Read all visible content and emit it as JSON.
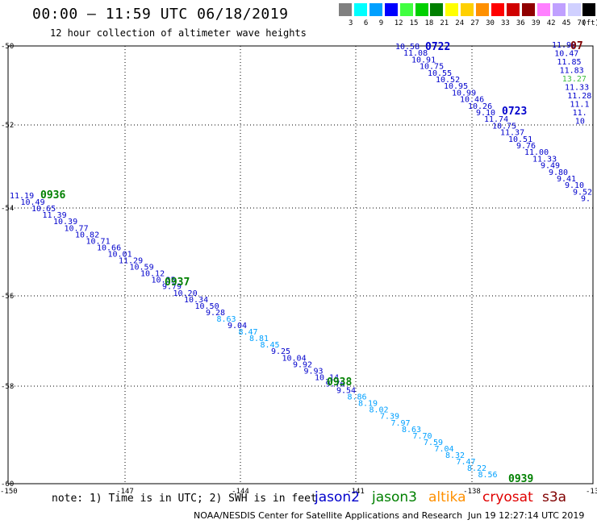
{
  "title": "00:00 – 11:59 UTC 06/18/2019",
  "subtitle": "12 hour collection of altimeter wave heights",
  "legend": {
    "unit": "(ft)",
    "bins": [
      {
        "label": "3",
        "color": "#808080"
      },
      {
        "label": "6",
        "color": "#00ffff"
      },
      {
        "label": "9",
        "color": "#00a0ff"
      },
      {
        "label": "12",
        "color": "#0000ff"
      },
      {
        "label": "15",
        "color": "#40ff40"
      },
      {
        "label": "18",
        "color": "#00d000"
      },
      {
        "label": "21",
        "color": "#008000"
      },
      {
        "label": "24",
        "color": "#ffff00"
      },
      {
        "label": "27",
        "color": "#ffd000"
      },
      {
        "label": "30",
        "color": "#ff9000"
      },
      {
        "label": "33",
        "color": "#ff0000"
      },
      {
        "label": "36",
        "color": "#d00000"
      },
      {
        "label": "39",
        "color": "#900000"
      },
      {
        "label": "42",
        "color": "#ff80ff"
      },
      {
        "label": "45",
        "color": "#c0a0ff"
      },
      {
        "label": "70",
        "color": "#d0d0ff"
      },
      {
        "label": "",
        "color": "#000000"
      }
    ]
  },
  "axes": {
    "lon_ticks": [
      -150,
      -147,
      -144,
      -141,
      -138,
      -135
    ],
    "lon_labels": [
      "-150",
      "-147",
      "-144",
      "-141",
      "-138",
      "-13"
    ],
    "lat_ticks": [
      -50,
      -52,
      -54,
      -56,
      -58,
      -60
    ],
    "lat_labels": [
      "-50",
      "-52",
      "-54",
      "-56",
      "-58",
      "-60"
    ]
  },
  "times": [
    {
      "label": "0722",
      "color": "#0000cc"
    },
    {
      "label": "0723",
      "color": "#0000cc"
    },
    {
      "label": "0936",
      "color": "#008000"
    },
    {
      "label": "0937",
      "color": "#008000"
    },
    {
      "label": "0938",
      "color": "#008000"
    },
    {
      "label": "0939",
      "color": "#008000"
    },
    {
      "label": "07",
      "color": "#800000"
    }
  ],
  "tracks": [
    {
      "name": "track-a",
      "values": [
        {
          "v": "10.58",
          "c": "#0000cc"
        },
        {
          "v": "11.08",
          "c": "#0000cc"
        },
        {
          "v": "10.91",
          "c": "#0000cc"
        },
        {
          "v": "10.75",
          "c": "#0000cc"
        },
        {
          "v": "10.55",
          "c": "#0000cc"
        },
        {
          "v": "10.52",
          "c": "#0000cc"
        },
        {
          "v": "10.95",
          "c": "#0000cc"
        },
        {
          "v": "10.99",
          "c": "#0000cc"
        },
        {
          "v": "10.46",
          "c": "#0000cc"
        },
        {
          "v": "10.26",
          "c": "#0000cc"
        },
        {
          "v": "9.10",
          "c": "#0000cc"
        },
        {
          "v": "11.74",
          "c": "#0000cc"
        },
        {
          "v": "10.75",
          "c": "#0000cc"
        },
        {
          "v": "11.37",
          "c": "#0000cc"
        },
        {
          "v": "10.51",
          "c": "#0000cc"
        },
        {
          "v": "9.76",
          "c": "#0000cc"
        },
        {
          "v": "11.00",
          "c": "#0000cc"
        },
        {
          "v": "11.33",
          "c": "#0000cc"
        },
        {
          "v": "9.49",
          "c": "#0000cc"
        },
        {
          "v": "9.80",
          "c": "#0000cc"
        },
        {
          "v": "9.41",
          "c": "#0000cc"
        },
        {
          "v": "9.10",
          "c": "#0000cc"
        },
        {
          "v": "9.52",
          "c": "#0000cc"
        },
        {
          "v": "9.",
          "c": "#0000cc"
        }
      ]
    },
    {
      "name": "track-b",
      "values": [
        {
          "v": "11.98",
          "c": "#0000cc"
        },
        {
          "v": "10.47",
          "c": "#0000cc"
        },
        {
          "v": "11.85",
          "c": "#0000cc"
        },
        {
          "v": "11.83",
          "c": "#0000cc"
        },
        {
          "v": "13.27",
          "c": "#40c040"
        },
        {
          "v": "11.33",
          "c": "#0000cc"
        },
        {
          "v": "11.28",
          "c": "#0000cc"
        },
        {
          "v": "11.1",
          "c": "#0000cc"
        },
        {
          "v": "11.",
          "c": "#0000cc"
        },
        {
          "v": "10",
          "c": "#0000cc"
        }
      ]
    },
    {
      "name": "track-c",
      "values": [
        {
          "v": "11.19",
          "c": "#0000cc"
        },
        {
          "v": "10.49",
          "c": "#0000cc"
        },
        {
          "v": "10.65",
          "c": "#0000cc"
        },
        {
          "v": "11.39",
          "c": "#0000cc"
        },
        {
          "v": "10.39",
          "c": "#0000cc"
        },
        {
          "v": "10.77",
          "c": "#0000cc"
        },
        {
          "v": "10.82",
          "c": "#0000cc"
        },
        {
          "v": "10.71",
          "c": "#0000cc"
        },
        {
          "v": "10.66",
          "c": "#0000cc"
        },
        {
          "v": "10.01",
          "c": "#0000cc"
        },
        {
          "v": "11.29",
          "c": "#0000cc"
        },
        {
          "v": "10.59",
          "c": "#0000cc"
        },
        {
          "v": "10.12",
          "c": "#0000cc"
        },
        {
          "v": "10.35",
          "c": "#0000cc"
        },
        {
          "v": "9.79",
          "c": "#0000cc"
        },
        {
          "v": "10.20",
          "c": "#0000cc"
        },
        {
          "v": "10.34",
          "c": "#0000cc"
        },
        {
          "v": "10.50",
          "c": "#0000cc"
        },
        {
          "v": "9.28",
          "c": "#0000cc"
        },
        {
          "v": "8.63",
          "c": "#00a0ff"
        },
        {
          "v": "9.04",
          "c": "#0000cc"
        },
        {
          "v": "8.47",
          "c": "#00a0ff"
        },
        {
          "v": "8.81",
          "c": "#00a0ff"
        },
        {
          "v": "8.45",
          "c": "#00a0ff"
        },
        {
          "v": "9.25",
          "c": "#0000cc"
        },
        {
          "v": "10.04",
          "c": "#0000cc"
        },
        {
          "v": "9.92",
          "c": "#0000cc"
        },
        {
          "v": "9.93",
          "c": "#0000cc"
        },
        {
          "v": "10.14",
          "c": "#0000cc"
        },
        {
          "v": "9.76",
          "c": "#0000cc"
        },
        {
          "v": "9.54",
          "c": "#0000cc"
        },
        {
          "v": "8.86",
          "c": "#00a0ff"
        },
        {
          "v": "8.19",
          "c": "#00a0ff"
        },
        {
          "v": "8.02",
          "c": "#00a0ff"
        },
        {
          "v": "7.39",
          "c": "#00a0ff"
        },
        {
          "v": "7.97",
          "c": "#00a0ff"
        },
        {
          "v": "8.63",
          "c": "#00a0ff"
        },
        {
          "v": "7.70",
          "c": "#00a0ff"
        },
        {
          "v": "7.59",
          "c": "#00a0ff"
        },
        {
          "v": "7.04",
          "c": "#00a0ff"
        },
        {
          "v": "8.32",
          "c": "#00a0ff"
        },
        {
          "v": "7.47",
          "c": "#00a0ff"
        },
        {
          "v": "8.22",
          "c": "#00a0ff"
        },
        {
          "v": "8.56",
          "c": "#00a0ff"
        }
      ]
    }
  ],
  "note": "note: 1) Time is in UTC; 2) SWH is in feet",
  "missions": [
    {
      "label": "jason2",
      "color": "#0000cc"
    },
    {
      "label": "jason3",
      "color": "#008000"
    },
    {
      "label": "altika",
      "color": "#ff9000"
    },
    {
      "label": "cryosat",
      "color": "#e00000"
    },
    {
      "label": "s3a",
      "color": "#800000"
    }
  ],
  "footer": "NOAA/NESDIS Center for Satellite Applications and Research",
  "footer_time": "Jun 19 12:27:14 UTC 2019"
}
